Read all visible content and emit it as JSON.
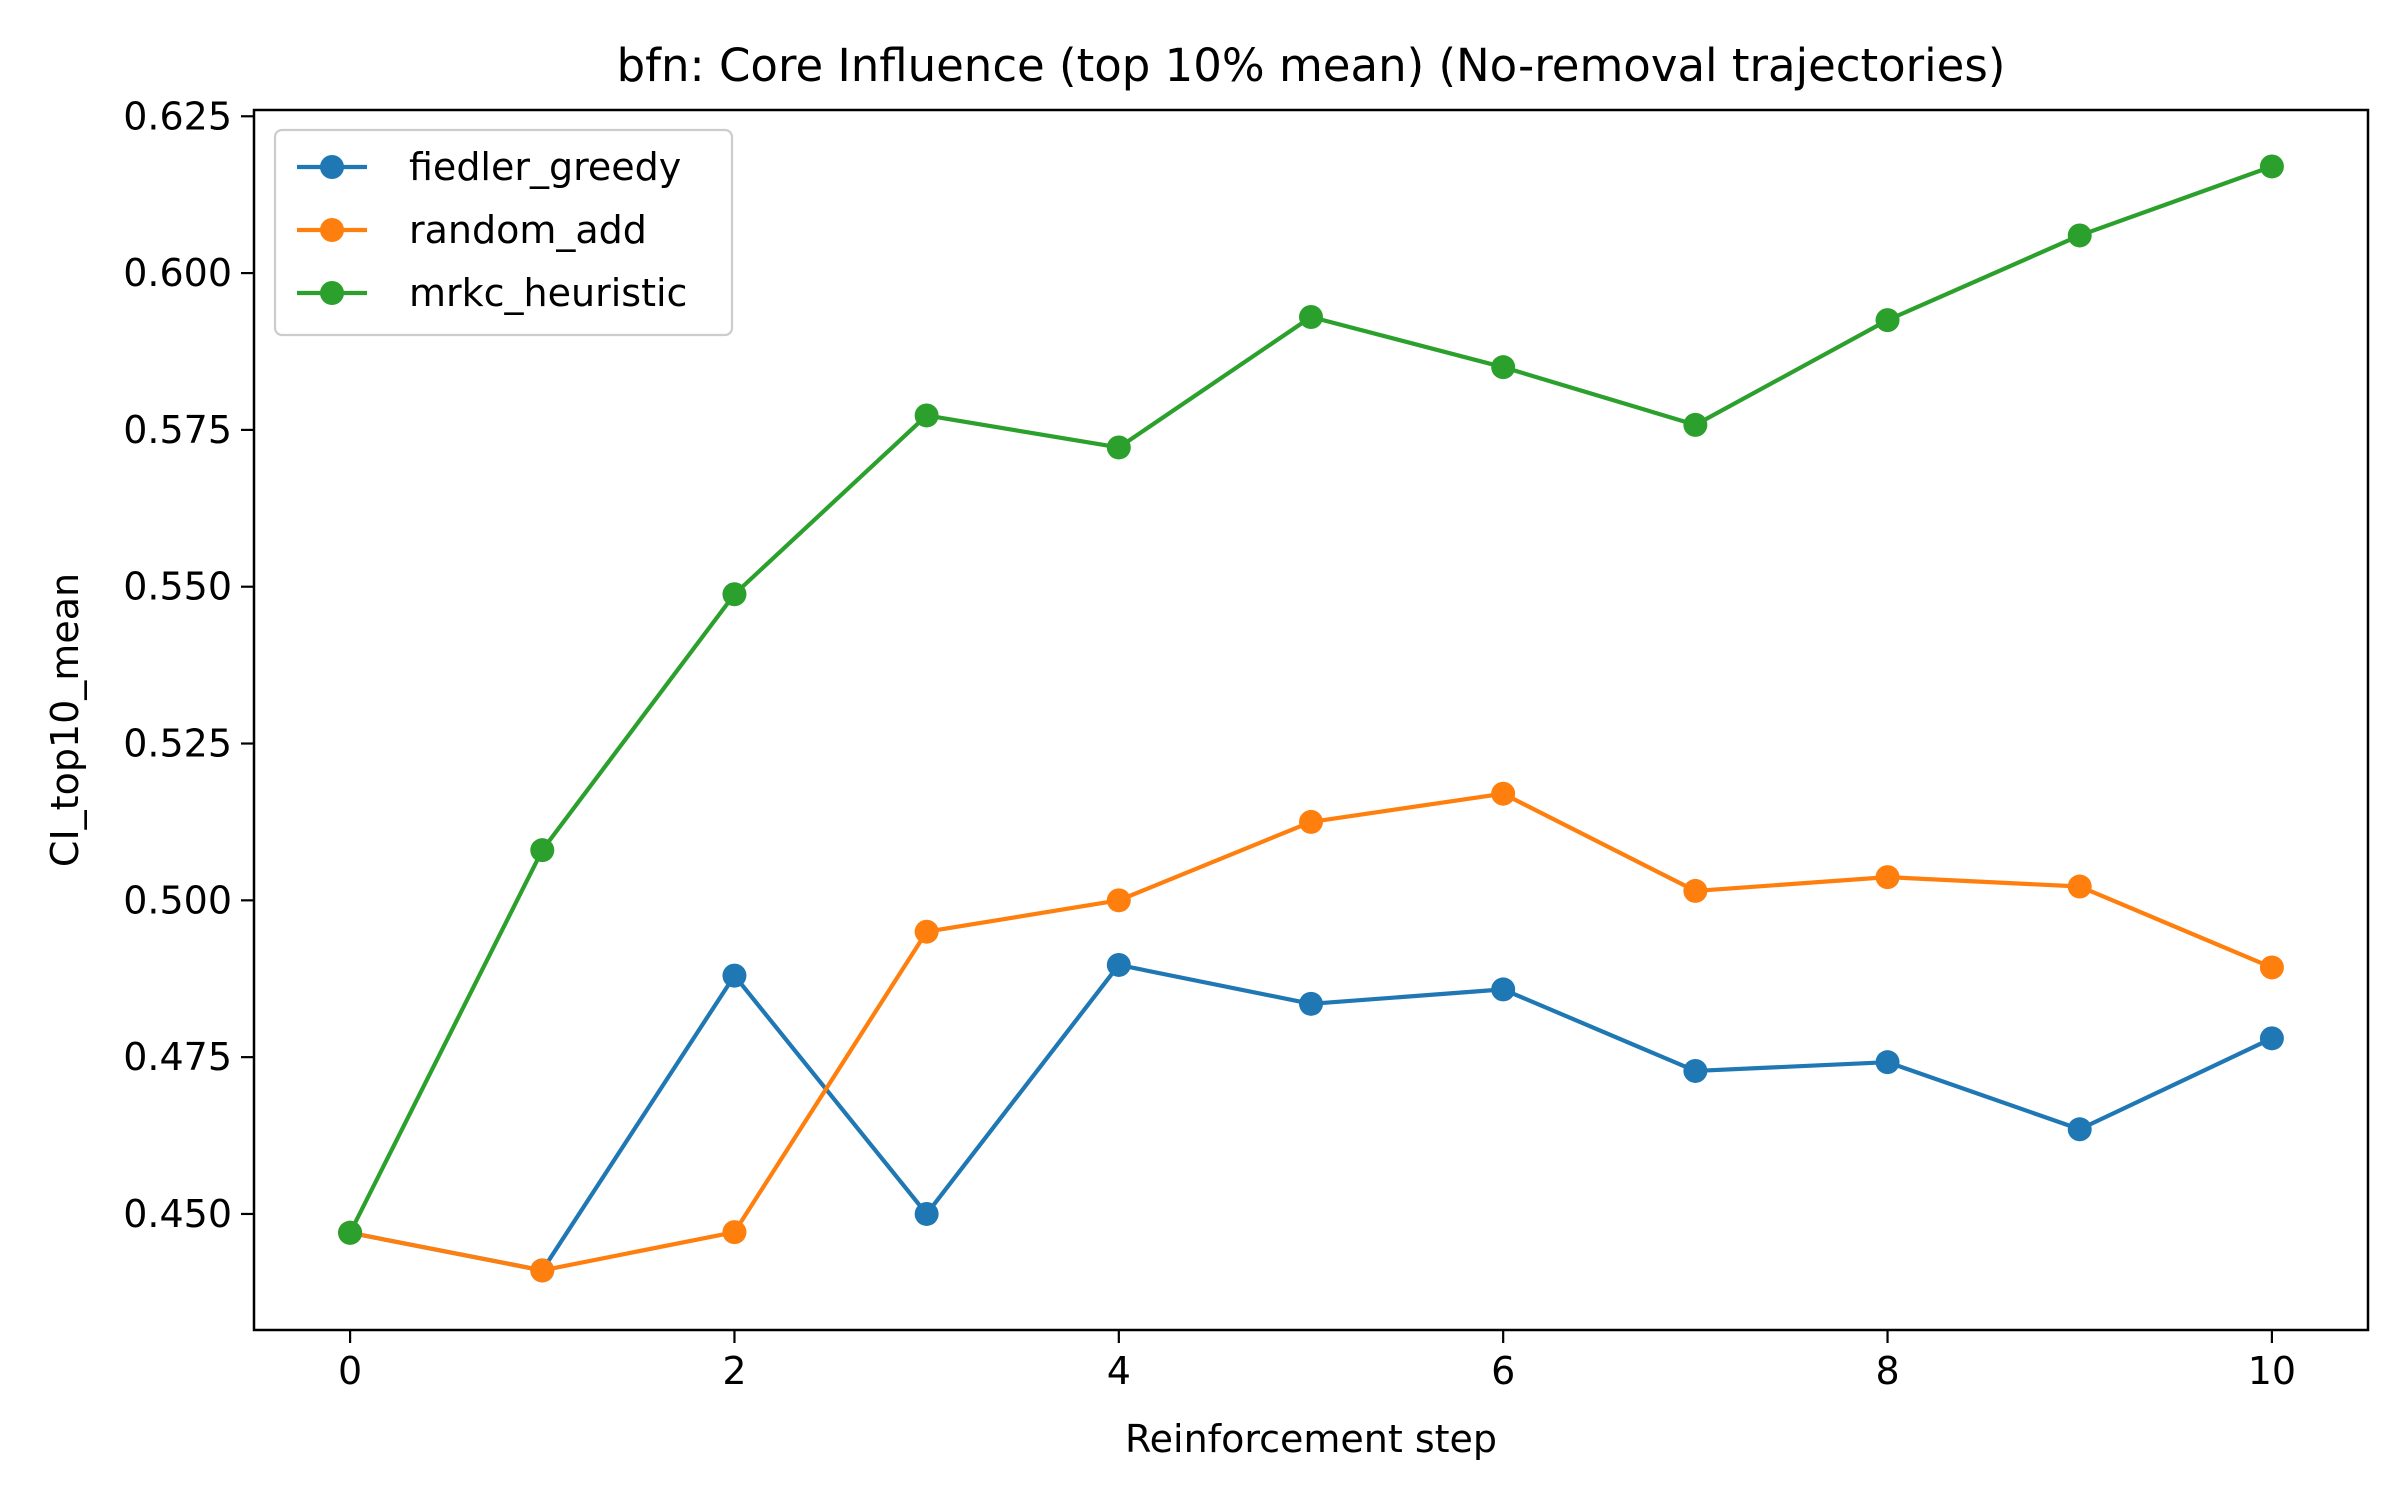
{
  "chart_data": {
    "type": "line",
    "title": "bfn: Core Influence (top 10% mean) (No-removal trajectories)",
    "xlabel": "Reinforcement step",
    "ylabel": "CI_top10_mean",
    "x": [
      0,
      1,
      2,
      3,
      4,
      5,
      6,
      7,
      8,
      9,
      10
    ],
    "xlim": [
      -0.5,
      10.5
    ],
    "ylim": [
      0.4315,
      0.626
    ],
    "xticks": [
      0,
      2,
      4,
      6,
      8,
      10
    ],
    "yticks": [
      0.45,
      0.475,
      0.5,
      0.525,
      0.55,
      0.575,
      0.6,
      0.625
    ],
    "ytick_labels": [
      "0.450",
      "0.475",
      "0.500",
      "0.525",
      "0.550",
      "0.575",
      "0.600",
      "0.625"
    ],
    "grid": false,
    "legend_position": "top-left",
    "series": [
      {
        "name": "fiedler_greedy",
        "color": "#1f77b4",
        "values": [
          0.447,
          0.441,
          0.488,
          0.45,
          0.4897,
          0.4835,
          0.4858,
          0.4728,
          0.4742,
          0.4635,
          0.478
        ]
      },
      {
        "name": "random_add",
        "color": "#ff7f0e",
        "values": [
          0.447,
          0.441,
          0.4471,
          0.495,
          0.5,
          0.5125,
          0.517,
          0.5015,
          0.5037,
          0.5022,
          0.4893
        ]
      },
      {
        "name": "mrkc_heuristic",
        "color": "#2ca02c",
        "values": [
          0.447,
          0.508,
          0.5488,
          0.5773,
          0.5722,
          0.593,
          0.585,
          0.5758,
          0.5925,
          0.606,
          0.617
        ]
      }
    ]
  }
}
